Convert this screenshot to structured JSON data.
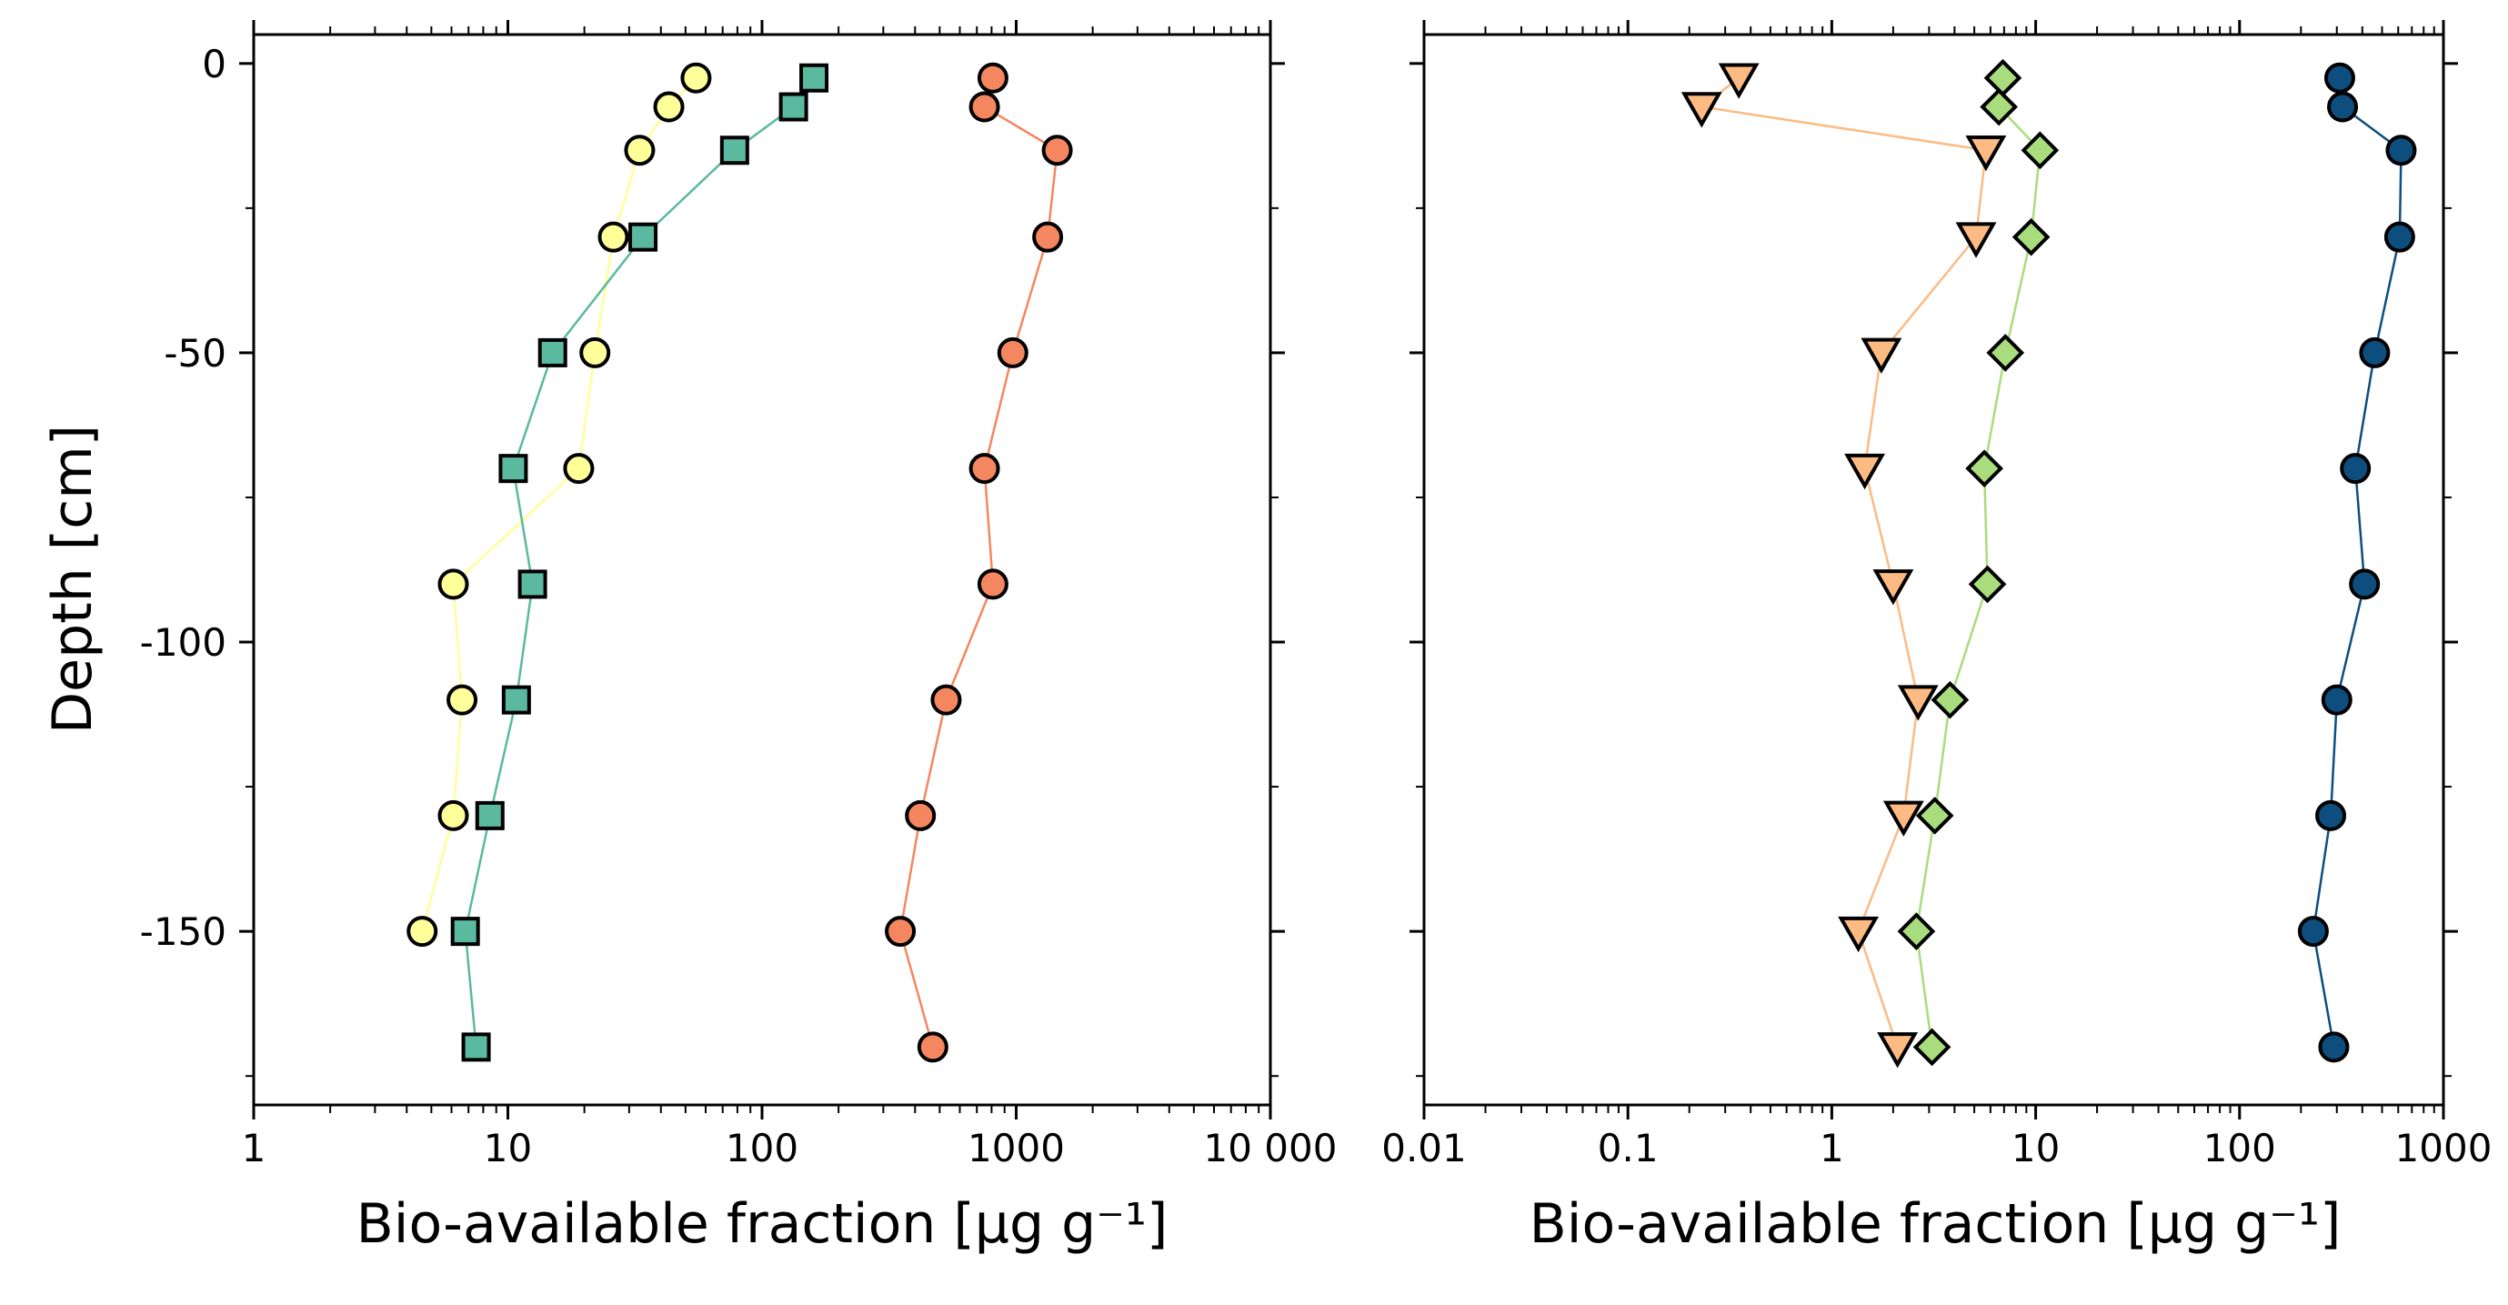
{
  "chart_data": [
    {
      "type": "scatter",
      "panel": "left",
      "xlabel": "Bio-available fraction [µg g⁻¹]",
      "ylabel": "Depth [cm]",
      "x_scale": "log",
      "xlim": [
        1,
        10000
      ],
      "ylim": [
        -180,
        5
      ],
      "x_ticks": [
        1,
        10,
        100,
        1000,
        10000
      ],
      "x_tick_labels": [
        "1",
        "10",
        "100",
        "1000",
        "10 000"
      ],
      "y_ticks": [
        0,
        -50,
        -100,
        -150
      ],
      "y_tick_labels": [
        "0",
        "-50",
        "-100",
        "-150"
      ],
      "grid": false,
      "series": [
        {
          "color": "#ffff99",
          "marker": "circle",
          "x": [
            55,
            43,
            33,
            26,
            22,
            19,
            6.1,
            6.6,
            6.1,
            4.6
          ],
          "y": [
            -2.5,
            -7.5,
            -15,
            -30,
            -50,
            -70,
            -90,
            -110,
            -130,
            -150
          ]
        },
        {
          "color": "#5ab99f",
          "marker": "square",
          "x": [
            160,
            133,
            78,
            34,
            15,
            10.5,
            12.5,
            10.8,
            8.5,
            6.8,
            7.5
          ],
          "y": [
            -2.5,
            -7.5,
            -15,
            -30,
            -50,
            -70,
            -90,
            -110,
            -130,
            -150,
            -170
          ]
        },
        {
          "color": "#f4875f",
          "marker": "circle",
          "x": [
            810,
            750,
            1450,
            1330,
            970,
            750,
            810,
            530,
            420,
            350,
            470
          ],
          "y": [
            -2.5,
            -7.5,
            -15,
            -30,
            -50,
            -70,
            -90,
            -110,
            -130,
            -150,
            -170
          ]
        }
      ]
    },
    {
      "type": "scatter",
      "panel": "right",
      "xlabel": "Bio-available fraction [µg g⁻¹]",
      "x_scale": "log",
      "xlim": [
        0.01,
        1000
      ],
      "ylim": [
        -180,
        5
      ],
      "x_ticks": [
        0.01,
        0.1,
        1,
        10,
        100,
        1000
      ],
      "x_tick_labels": [
        "0.01",
        "0.1",
        "1",
        "10",
        "100",
        "1000"
      ],
      "y_ticks": [
        0,
        -50,
        -100,
        -150
      ],
      "grid": false,
      "series": [
        {
          "color": "#fdba82",
          "marker": "triangle-down",
          "x": [
            0.35,
            0.23,
            5.7,
            5.1,
            1.75,
            1.45,
            2.0,
            2.65,
            2.25,
            1.35,
            2.1
          ],
          "y": [
            -2.5,
            -7.5,
            -15,
            -30,
            -50,
            -70,
            -90,
            -110,
            -130,
            -150,
            -170
          ]
        },
        {
          "color": "#a9dc7c",
          "marker": "diamond",
          "x": [
            6.9,
            6.6,
            10.5,
            9.5,
            7.1,
            5.6,
            5.8,
            3.8,
            3.2,
            2.6,
            3.1
          ],
          "y": [
            -2.5,
            -7.5,
            -15,
            -30,
            -50,
            -70,
            -90,
            -110,
            -130,
            -150,
            -170
          ]
        },
        {
          "color": "#0d4e7e",
          "marker": "circle",
          "x": [
            310,
            320,
            620,
            610,
            460,
            370,
            410,
            300,
            280,
            230,
            290
          ],
          "y": [
            -2.5,
            -7.5,
            -15,
            -30,
            -50,
            -70,
            -90,
            -110,
            -130,
            -150,
            -170
          ]
        }
      ]
    }
  ]
}
